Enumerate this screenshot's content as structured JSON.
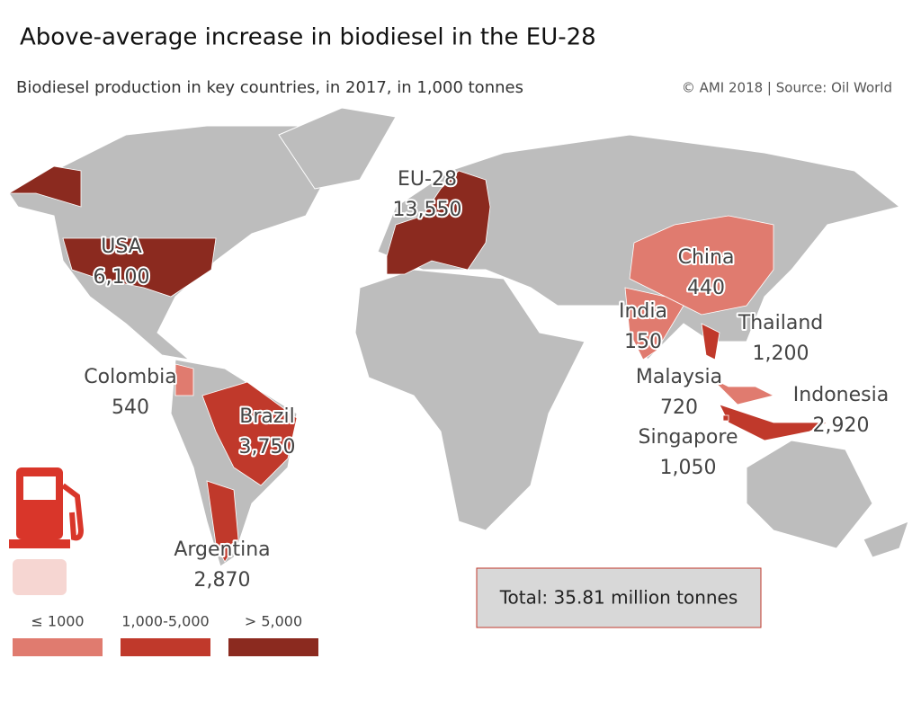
{
  "header": {
    "title": "Above-average increase in biodiesel in the EU-28",
    "subtitle": "Biodiesel production in key countries, in 2017, in 1,000 tonnes",
    "source": "© AMI 2018 | Source: Oil World"
  },
  "countries": [
    {
      "name": "USA",
      "value": "6,100",
      "color": "#8b2a1f"
    },
    {
      "name": "EU-28",
      "value": "13,550",
      "color": "#8b2a1f"
    },
    {
      "name": "China",
      "value": "440",
      "color": "#e07b6f"
    },
    {
      "name": "India",
      "value": "150",
      "color": "#e07b6f"
    },
    {
      "name": "Thailand",
      "value": "1,200",
      "color": "#c0392b"
    },
    {
      "name": "Malaysia",
      "value": "720",
      "color": "#e07b6f"
    },
    {
      "name": "Indonesia",
      "value": "2,920",
      "color": "#c0392b"
    },
    {
      "name": "Singapore",
      "value": "1,050",
      "color": "#c0392b"
    },
    {
      "name": "Colombia",
      "value": "540",
      "color": "#e07b6f"
    },
    {
      "name": "Brazil",
      "value": "3,750",
      "color": "#c0392b"
    },
    {
      "name": "Argentina",
      "value": "2,870",
      "color": "#c0392b"
    }
  ],
  "legend": [
    {
      "label": "≤ 1000",
      "color": "#e07b6f"
    },
    {
      "label": "1,000-5,000",
      "color": "#c0392b"
    },
    {
      "label": "> 5,000",
      "color": "#8b2a1f"
    }
  ],
  "total": "Total: 35.81 million tonnes"
}
